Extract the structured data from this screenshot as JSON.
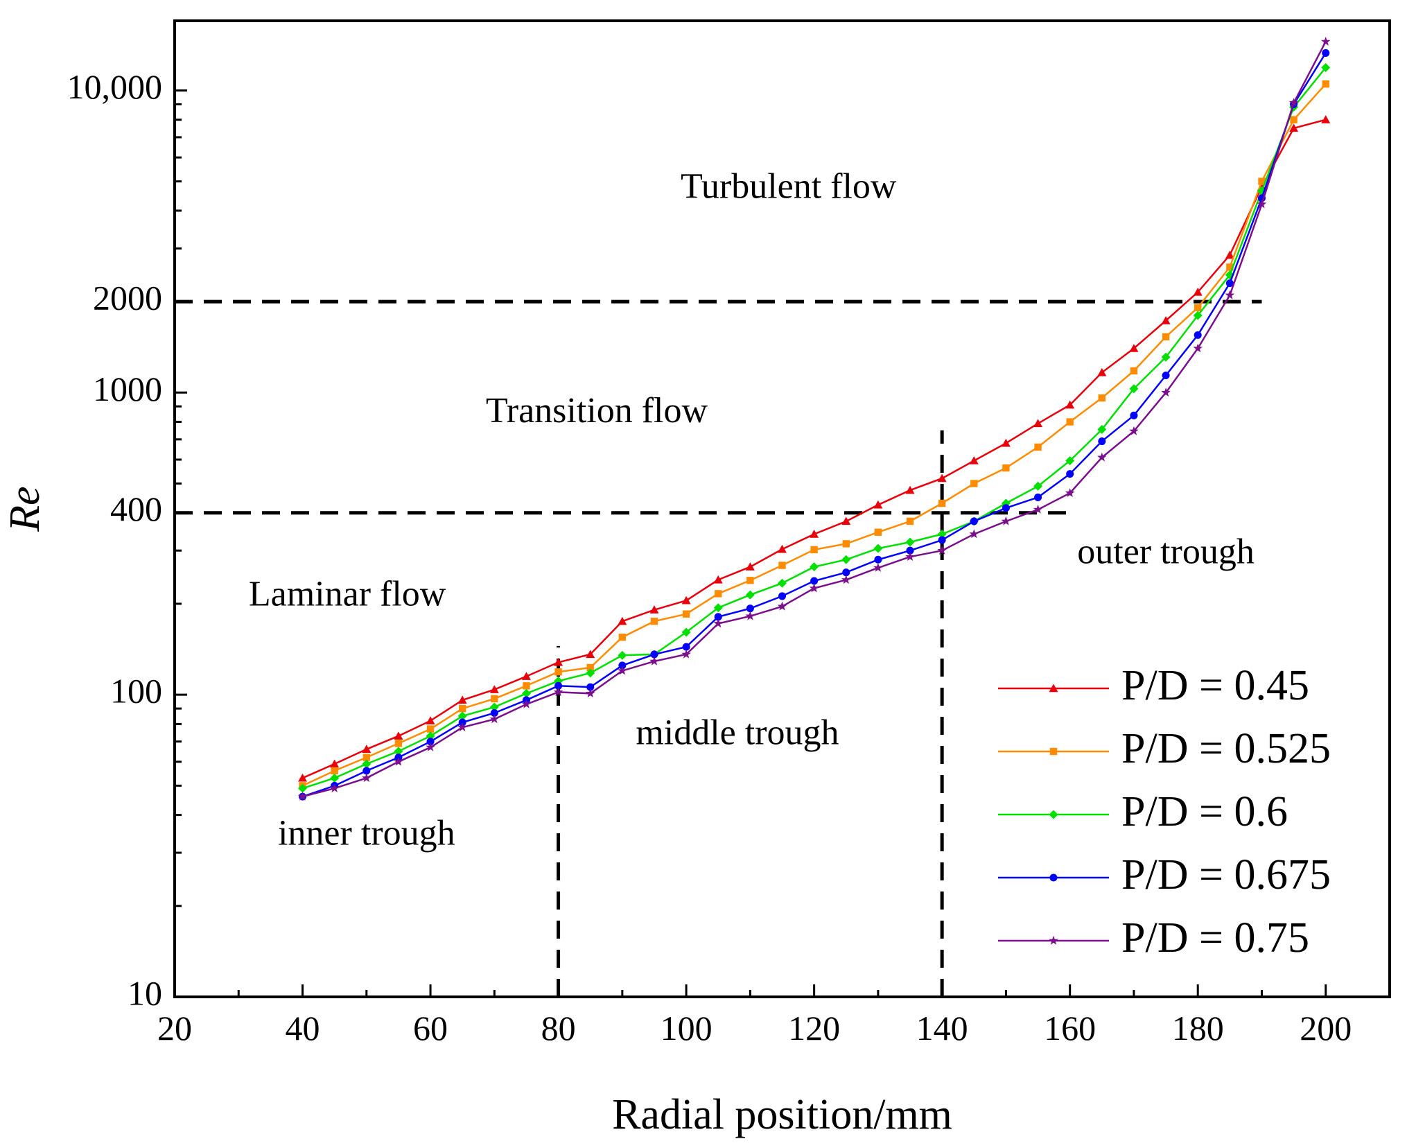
{
  "chart_data": {
    "type": "line",
    "xlabel": "Radial position/mm",
    "ylabel": "Re",
    "xlim": [
      20,
      210
    ],
    "ylim": [
      10,
      17000
    ],
    "yscale": "log",
    "grid": false,
    "legend_position": "bottom-right",
    "x_ticks": [
      20,
      40,
      60,
      80,
      100,
      120,
      140,
      160,
      180,
      200
    ],
    "x_tick_labels": [
      "20",
      "40",
      "60",
      "80",
      "100",
      "120",
      "140",
      "160",
      "180",
      "200"
    ],
    "y_ticks": [
      10,
      100,
      400,
      1000,
      2000,
      10000
    ],
    "y_tick_labels": [
      "10",
      "100",
      "400",
      "1000",
      "2000",
      "10,000"
    ],
    "x": [
      40,
      45,
      50,
      55,
      60,
      65,
      70,
      75,
      80,
      85,
      90,
      95,
      100,
      105,
      110,
      115,
      120,
      125,
      130,
      135,
      140,
      145,
      150,
      155,
      160,
      165,
      170,
      175,
      180,
      185,
      190,
      195,
      200
    ],
    "series": [
      {
        "name": "P/D = 0.45",
        "color": "#e8000b",
        "marker": "triangle",
        "values": [
          53,
          59,
          66,
          73,
          82,
          96,
          104,
          115,
          128,
          136,
          175,
          191,
          205,
          240,
          265,
          303,
          340,
          375,
          425,
          475,
          520,
          595,
          680,
          790,
          910,
          1165,
          1400,
          1730,
          2150,
          2850,
          4800,
          7500,
          8000
        ]
      },
      {
        "name": "P/D = 0.525",
        "color": "#ff8c00",
        "marker": "square",
        "values": [
          50,
          56,
          62,
          69,
          77,
          90,
          97,
          107,
          119,
          123,
          155,
          175,
          185,
          216,
          239,
          268,
          302,
          316,
          345,
          375,
          430,
          500,
          563,
          660,
          800,
          960,
          1180,
          1530,
          1910,
          2600,
          5000,
          8000,
          10500
        ]
      },
      {
        "name": "P/D = 0.6",
        "color": "#00e000",
        "marker": "diamond",
        "values": [
          49,
          53,
          59,
          65,
          73,
          85,
          91,
          101,
          111,
          118,
          135,
          136,
          161,
          194,
          214,
          234,
          265,
          280,
          305,
          320,
          340,
          375,
          430,
          490,
          595,
          755,
          1030,
          1310,
          1800,
          2450,
          4650,
          8800,
          11900
        ]
      },
      {
        "name": "P/D = 0.675",
        "color": "#0000ff",
        "marker": "circle",
        "values": [
          46,
          50,
          56,
          62,
          70,
          81,
          87,
          96,
          107,
          106,
          125,
          136,
          144,
          181,
          193,
          212,
          238,
          254,
          280,
          300,
          325,
          375,
          415,
          450,
          538,
          690,
          840,
          1140,
          1550,
          2300,
          4400,
          9000,
          13300
        ]
      },
      {
        "name": "P/D = 0.75",
        "color": "#7b0f8c",
        "marker": "star",
        "values": [
          46,
          49,
          53,
          60,
          67,
          78,
          83,
          93,
          102,
          101,
          120,
          129,
          136,
          172,
          182,
          196,
          225,
          240,
          263,
          286,
          300,
          340,
          375,
          410,
          465,
          610,
          745,
          1000,
          1400,
          2100,
          4200,
          9100,
          14500
        ]
      }
    ],
    "reference_lines": [
      {
        "orientation": "horizontal",
        "y": 2000,
        "x_range": [
          20,
          190
        ]
      },
      {
        "orientation": "horizontal",
        "y": 400,
        "x_range": [
          20,
          160
        ]
      },
      {
        "orientation": "vertical",
        "x": 80,
        "y_range": [
          10,
          145
        ]
      },
      {
        "orientation": "vertical",
        "x": 140,
        "y_range": [
          10,
          750
        ]
      }
    ],
    "annotations": [
      {
        "text": "Turbulent flow",
        "x": 116,
        "y": 4700
      },
      {
        "text": "Transition flow",
        "x": 86,
        "y": 850
      },
      {
        "text": "Laminar flow",
        "x": 47,
        "y": 210
      },
      {
        "text": "inner trough",
        "x": 50,
        "y": 34
      },
      {
        "text": "middle trough",
        "x": 108,
        "y": 73
      },
      {
        "text": "outer trough",
        "x": 175,
        "y": 290
      }
    ]
  }
}
